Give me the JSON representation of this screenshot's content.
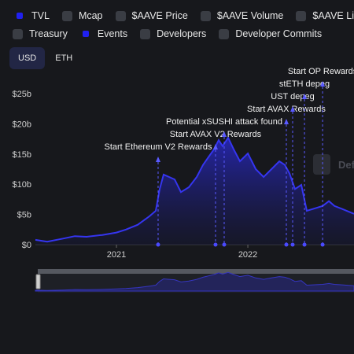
{
  "toggles": [
    {
      "label": "TVL",
      "checked": true
    },
    {
      "label": "Mcap",
      "checked": false
    },
    {
      "label": "$AAVE Price",
      "checked": false
    },
    {
      "label": "$AAVE Volume",
      "checked": false
    },
    {
      "label": "$AAVE Liquidity",
      "checked": false
    },
    {
      "label": "Treasury",
      "checked": false
    },
    {
      "label": "Events",
      "checked": true
    },
    {
      "label": "Developers",
      "checked": false
    },
    {
      "label": "Developer Commits",
      "checked": false
    }
  ],
  "currency_tabs": [
    "USD",
    "ETH"
  ],
  "watermark": "DefiLlama",
  "chart_data": {
    "type": "area",
    "x": [
      2020.383,
      2020.473,
      2020.593,
      2020.683,
      2020.772,
      2020.892,
      2021.0,
      2021.072,
      2021.162,
      2021.251,
      2021.299,
      2021.329,
      2021.359,
      2021.401,
      2021.443,
      2021.491,
      2021.551,
      2021.611,
      2021.659,
      2021.701,
      2021.743,
      2021.778,
      2021.808,
      2021.85,
      2021.892,
      2021.94,
      2022.0,
      2022.06,
      2022.12,
      2022.18,
      2022.24,
      2022.281,
      2022.317,
      2022.359,
      2022.407,
      2022.449,
      2022.509,
      2022.569,
      2022.617,
      2022.659,
      2022.719,
      2022.808
    ],
    "series": [
      {
        "name": "TVL",
        "color": "#3535f0",
        "values": [
          0.8,
          0.5,
          1.0,
          1.4,
          1.3,
          1.6,
          2.0,
          2.5,
          3.3,
          4.7,
          5.6,
          9.2,
          11.6,
          11.2,
          10.8,
          8.7,
          9.5,
          11.2,
          13.2,
          14.5,
          15.8,
          17.3,
          16.3,
          17.7,
          15.8,
          13.8,
          15.1,
          12.5,
          11.2,
          12.5,
          13.8,
          13.2,
          11.8,
          9.2,
          9.9,
          5.6,
          6.0,
          6.4,
          7.2,
          6.4,
          5.9,
          5.1
        ]
      }
    ],
    "xlim": [
      2020.383,
      2022.808
    ],
    "xticks": [
      2021,
      2022
    ],
    "ylim": [
      0,
      30
    ],
    "yticks": [
      {
        "value": 0,
        "label": "$0"
      },
      {
        "value": 5,
        "label": "$5b"
      },
      {
        "value": 10,
        "label": "$10b"
      },
      {
        "value": 15,
        "label": "$15b"
      },
      {
        "value": 20,
        "label": "$20b"
      },
      {
        "value": 25,
        "label": "$25b"
      }
    ],
    "events": [
      {
        "label": "Start Ethereum V2 Rewards",
        "x": 2021.317
      },
      {
        "label": "Start AVAX V2 Rewards",
        "x": 2021.754
      },
      {
        "label": "Potential xSUSHI attack found",
        "x": 2021.82
      },
      {
        "label": "Start AVAX Rewards",
        "x": 2022.293
      },
      {
        "label": "UST depeg",
        "x": 2022.341
      },
      {
        "label": "stETH depeg",
        "x": 2022.431
      },
      {
        "label": "Start OP Rewards",
        "x": 2022.569
      }
    ]
  }
}
